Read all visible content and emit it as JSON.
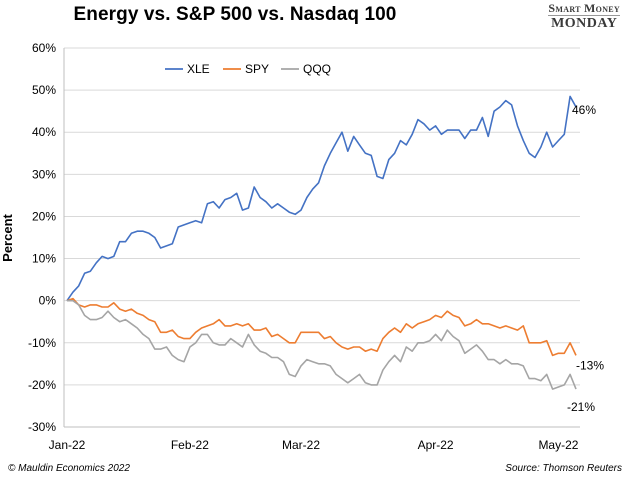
{
  "header": {
    "brand_top": "Smart Money",
    "brand_bottom": "MONDAY"
  },
  "footer": {
    "copyright": "© Mauldin Economics 2022",
    "source": "Source: Thomson Reuters"
  },
  "chart_data": {
    "type": "line",
    "title": "Energy vs. S&P 500 vs. Nasdaq 100",
    "xlabel": "",
    "ylabel": "Percent",
    "ylim": [
      -30,
      60
    ],
    "y_ticks": [
      -30,
      -20,
      -10,
      0,
      10,
      20,
      30,
      40,
      50,
      60
    ],
    "y_tick_labels": [
      "-30%",
      "-20%",
      "-10%",
      "0%",
      "10%",
      "20%",
      "30%",
      "40%",
      "50%",
      "60%"
    ],
    "x_tick_labels": [
      "Jan-22",
      "Feb-22",
      "Mar-22",
      "Apr-22",
      "May-22"
    ],
    "x_tick_index": [
      0,
      21,
      40,
      63,
      84
    ],
    "grid": "horizontal",
    "legend_position": "top-left",
    "series": [
      {
        "name": "XLE",
        "color": "#4472C4",
        "end_label": "46%",
        "values": [
          0,
          2,
          3.5,
          6.5,
          7,
          9,
          10.5,
          10,
          10.5,
          14,
          14,
          16,
          16.5,
          16.5,
          16,
          15,
          12.5,
          13,
          13.5,
          17.5,
          18,
          18.5,
          19,
          18.5,
          23,
          23.5,
          22,
          24,
          24.5,
          25.5,
          21.5,
          22,
          27,
          24.5,
          23.5,
          22,
          23,
          22,
          21,
          20.5,
          21.5,
          24.5,
          26.5,
          28,
          32,
          35,
          37.5,
          40,
          35.5,
          39,
          37,
          35,
          34.5,
          29.5,
          29,
          33.5,
          35,
          38,
          37,
          39.5,
          43,
          42,
          40.5,
          41.5,
          39.5,
          40.5,
          40.5,
          40.5,
          38.5,
          40.5,
          40.5,
          43.5,
          39,
          45,
          46,
          47.5,
          46.5,
          41.5,
          38,
          35,
          34,
          36.5,
          40,
          36.5,
          38,
          39.5,
          48.5,
          46
        ]
      },
      {
        "name": "SPY",
        "color": "#ED7D31",
        "end_label": "-13%",
        "values": [
          0,
          0.5,
          -1,
          -1.5,
          -1,
          -1,
          -1.5,
          -1.5,
          -0.5,
          -2,
          -2.5,
          -2,
          -3,
          -3.5,
          -4.5,
          -5,
          -7.5,
          -7.5,
          -7,
          -8.5,
          -9,
          -9,
          -7.5,
          -6.5,
          -6,
          -5.5,
          -4.5,
          -6,
          -6,
          -5.5,
          -6,
          -5.5,
          -7,
          -7,
          -6.5,
          -8.5,
          -8,
          -9,
          -10,
          -10,
          -7.5,
          -7.5,
          -7.5,
          -7.5,
          -9,
          -8.5,
          -10,
          -11,
          -11.5,
          -11,
          -11,
          -12,
          -11.5,
          -12,
          -9,
          -7.5,
          -6.5,
          -7.5,
          -5.5,
          -6.5,
          -5.5,
          -5,
          -4.5,
          -3.5,
          -4,
          -2.5,
          -3.5,
          -4,
          -6,
          -5.5,
          -4.5,
          -5.5,
          -5.5,
          -6,
          -6.5,
          -6,
          -6.5,
          -7,
          -6,
          -10,
          -10,
          -10,
          -9.5,
          -13,
          -12.5,
          -12.5,
          -10,
          -13
        ]
      },
      {
        "name": "QQQ",
        "color": "#A5A5A5",
        "end_label": "-21%",
        "values": [
          0,
          0,
          -1,
          -3.5,
          -4.5,
          -4.5,
          -4,
          -2.5,
          -4,
          -5,
          -4.5,
          -5.5,
          -6.5,
          -8,
          -9,
          -11.5,
          -11.5,
          -11,
          -13,
          -14,
          -14.5,
          -11,
          -10,
          -8,
          -8,
          -10,
          -10.5,
          -10.5,
          -9,
          -10,
          -11,
          -8,
          -10.5,
          -12,
          -12.5,
          -13.5,
          -13.5,
          -14.5,
          -17.5,
          -18,
          -15.5,
          -14,
          -14.5,
          -15,
          -15,
          -15.5,
          -17.5,
          -18.5,
          -19.5,
          -18.5,
          -17.5,
          -19.5,
          -20,
          -20,
          -16.5,
          -14.5,
          -13,
          -14.5,
          -11,
          -12,
          -10,
          -10,
          -9.5,
          -8,
          -9.5,
          -7,
          -8.5,
          -9.5,
          -12.5,
          -11.5,
          -10.5,
          -12,
          -14,
          -14,
          -15,
          -14,
          -15,
          -15,
          -15.5,
          -18.5,
          -18.5,
          -19,
          -17.5,
          -21,
          -20.5,
          -20,
          -17.5,
          -21
        ]
      }
    ]
  }
}
